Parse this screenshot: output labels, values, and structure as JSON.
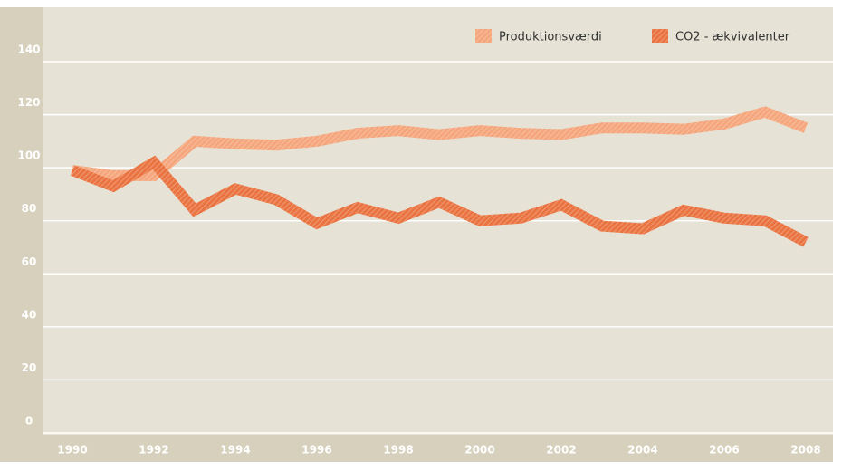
{
  "chart_data": {
    "type": "line",
    "categories": [
      "1990",
      null,
      "1992",
      null,
      "1994",
      null,
      "1996",
      null,
      "1998",
      null,
      "2000",
      null,
      "2002",
      null,
      "2004",
      null,
      "2006",
      null,
      "2008"
    ],
    "series": [
      {
        "name": "Produktionsværdi",
        "color": "#f5a67c",
        "values": [
          99,
          97,
          97,
          110,
          109,
          108.5,
          110,
          113,
          114,
          112.5,
          114,
          113,
          112.5,
          115,
          115,
          114.5,
          116.5,
          121,
          115
        ]
      },
      {
        "name": "CO2 - ækvivalenter",
        "color": "#ea7441",
        "values": [
          99,
          93,
          102,
          84,
          92,
          88,
          79,
          85,
          81,
          87,
          80,
          81,
          86,
          78,
          77,
          84,
          81,
          80,
          72
        ]
      }
    ],
    "ylim": [
      0,
      140
    ],
    "yticks": [
      0,
      20,
      40,
      60,
      80,
      100,
      120,
      140
    ],
    "grid": true
  }
}
